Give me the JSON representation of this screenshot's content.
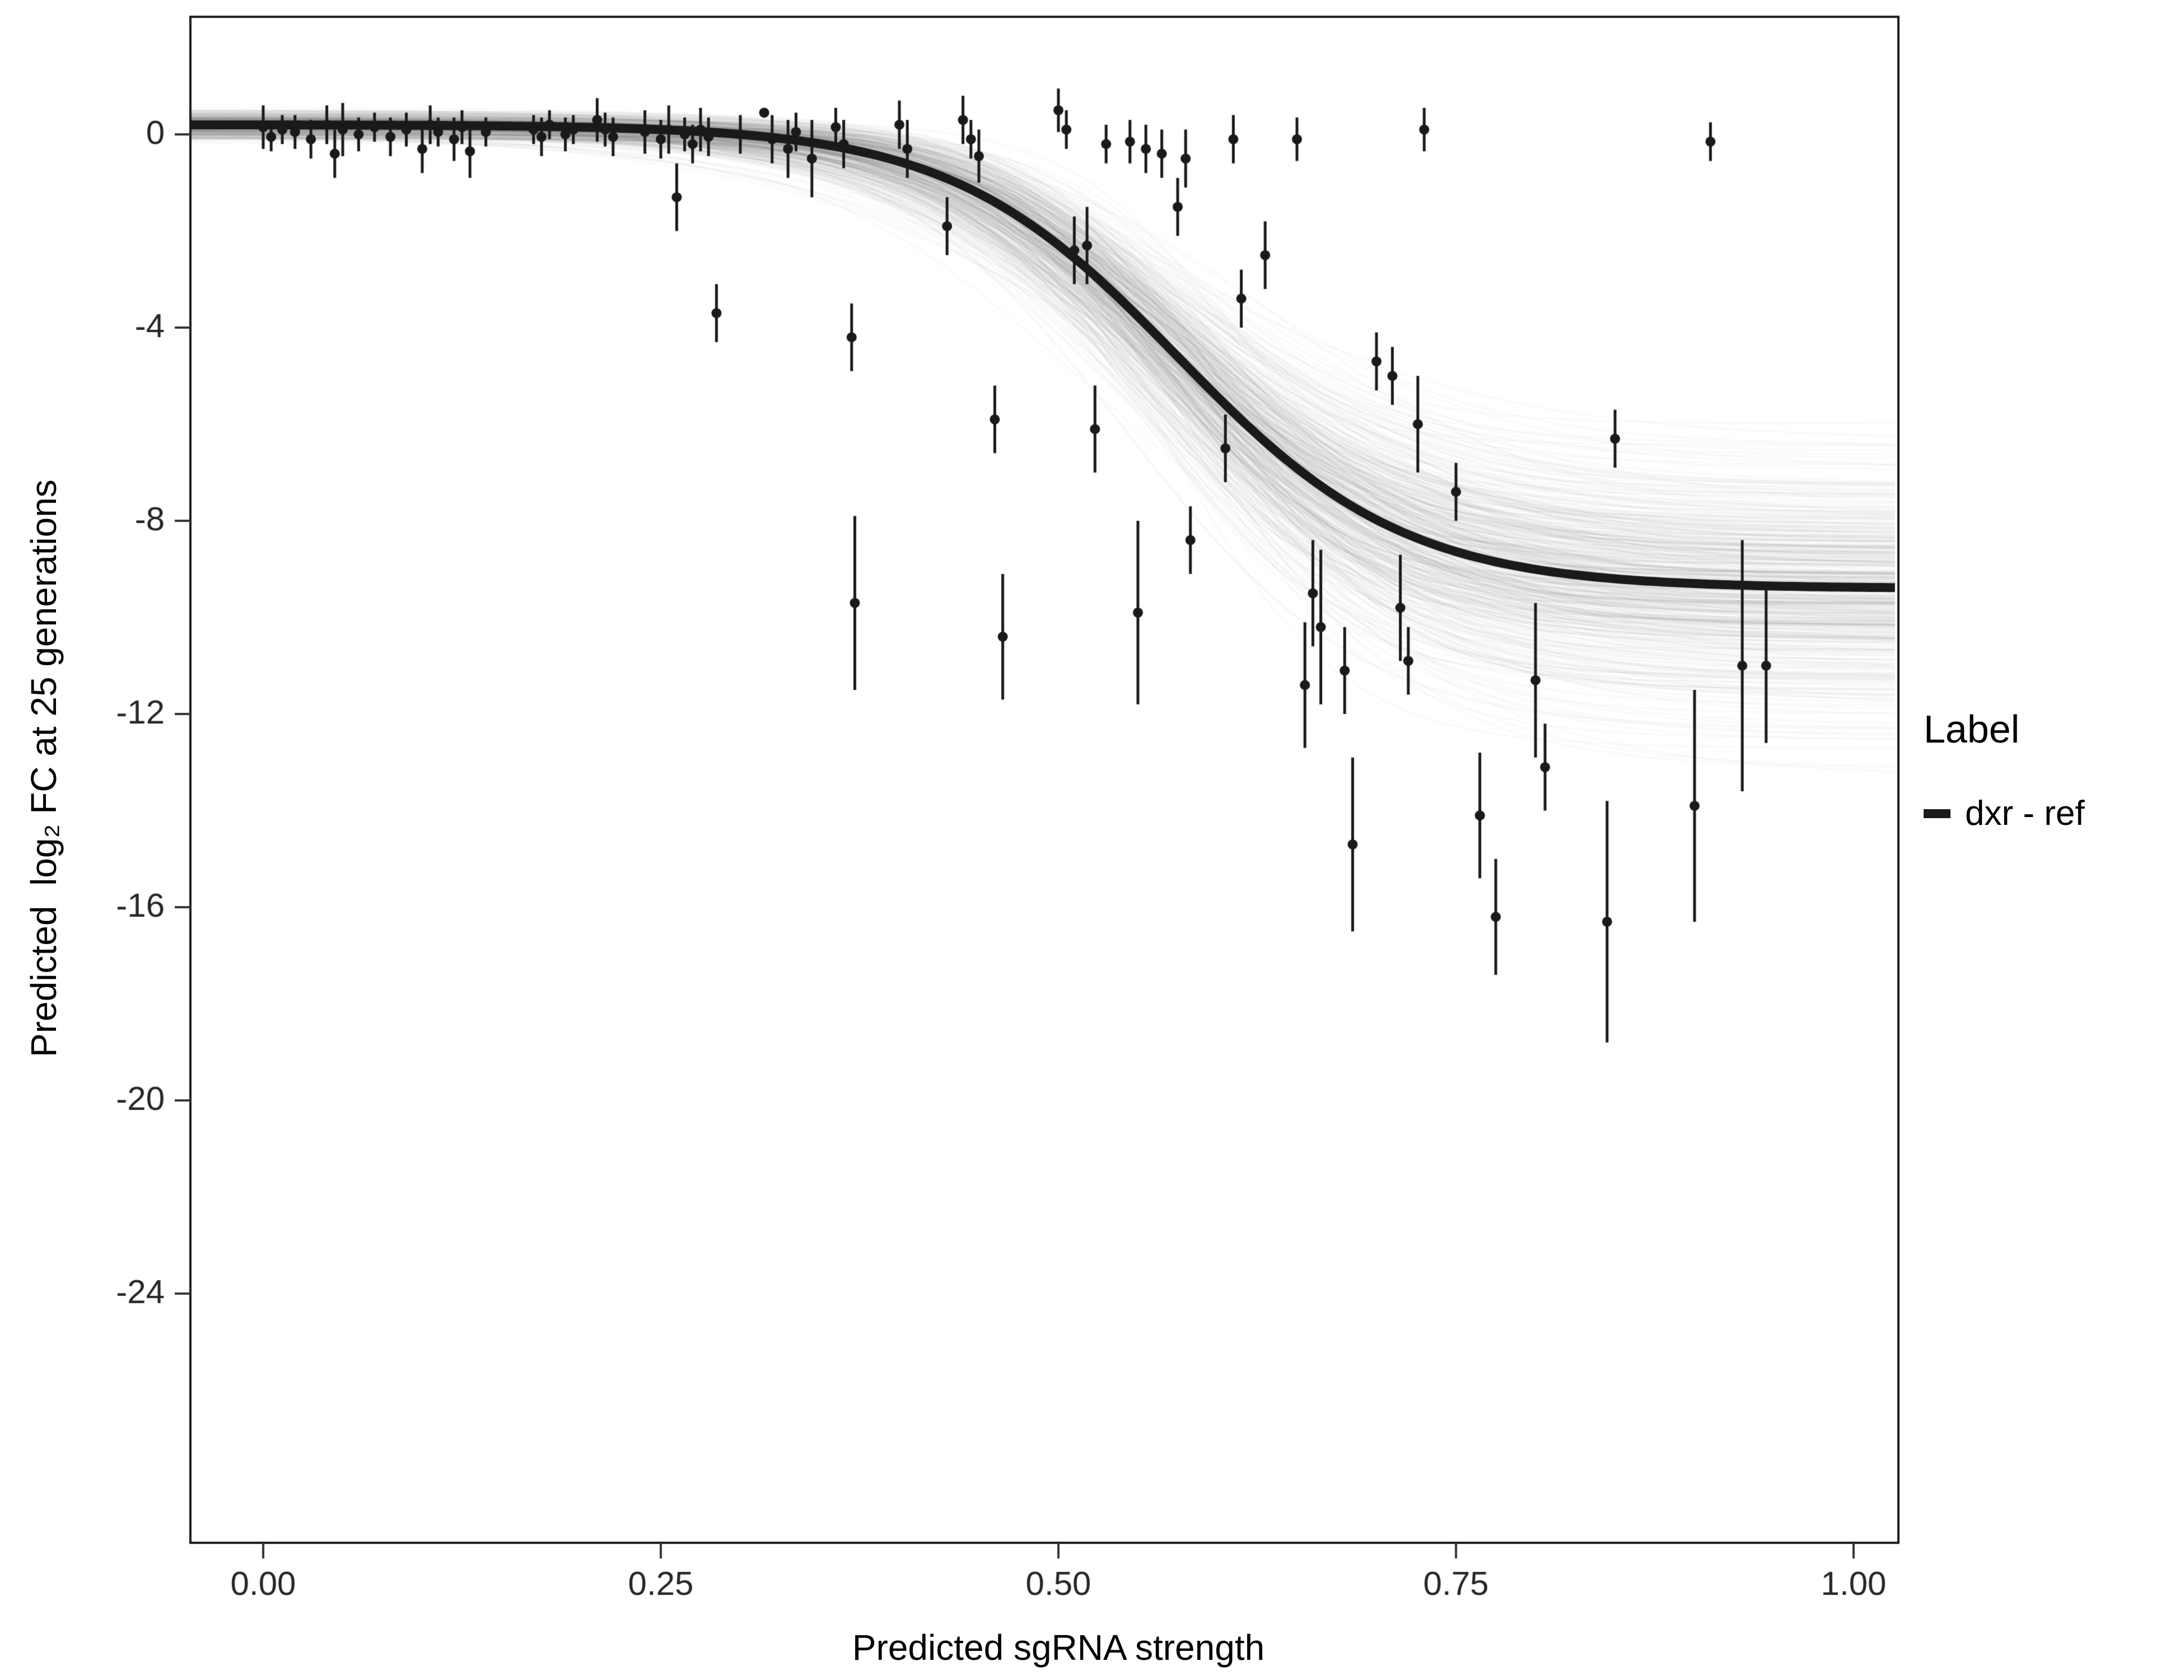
{
  "figure": {
    "background": "#ffffff"
  },
  "chart_data": {
    "type": "scatter",
    "title": "",
    "xlabel": "Predicted sgRNA strength",
    "ylabel": "Predicted  log₂ FC at 25 generations",
    "grid": false,
    "legend_position": "right",
    "axes": {
      "x": {
        "ticks": [
          0,
          0.25,
          0.5,
          0.75,
          1.0
        ],
        "tick_labels": [
          "0.00",
          "0.25",
          "0.50",
          "0.75",
          "1.00"
        ],
        "range": [
          -0.046,
          1.028
        ]
      },
      "y": {
        "ticks": [
          0,
          -4,
          -8,
          -12,
          -16,
          -20,
          -24
        ],
        "tick_labels": [
          "0",
          "-4",
          "-8",
          "-12",
          "-16",
          "-20",
          "-24"
        ],
        "range": [
          2.4,
          -29.2
        ]
      }
    },
    "legend": {
      "title": "Label",
      "items": [
        {
          "label": "dxr - ref",
          "color": "#1a1a1a"
        }
      ]
    },
    "fit": {
      "model": "sigmoid",
      "top": 0.2,
      "bottom": -9.4,
      "x0": 0.575,
      "k": 14,
      "color": "#1a1a1a",
      "width": 16
    },
    "band": {
      "curves": 500,
      "seed": 12,
      "top_sd": 0.12,
      "bottom_sd": 1.25,
      "x0_sd": 0.018,
      "k_sd": 2.2,
      "color": "rgba(125,125,125,0.04)",
      "line_width": 3
    },
    "point_style": {
      "color": "#1a1a1a",
      "radius": 9,
      "errorbar_width": 5
    },
    "points": [
      [
        0.0,
        0.15,
        0.45
      ],
      [
        0.005,
        -0.05,
        0.3
      ],
      [
        0.012,
        0.1,
        0.3
      ],
      [
        0.02,
        0.05,
        0.35
      ],
      [
        0.03,
        -0.1,
        0.4
      ],
      [
        0.04,
        0.2,
        0.4
      ],
      [
        0.045,
        -0.4,
        0.5
      ],
      [
        0.05,
        0.1,
        0.55
      ],
      [
        0.06,
        0.0,
        0.35
      ],
      [
        0.07,
        0.15,
        0.3
      ],
      [
        0.08,
        -0.05,
        0.4
      ],
      [
        0.09,
        0.1,
        0.35
      ],
      [
        0.1,
        -0.3,
        0.5
      ],
      [
        0.105,
        0.2,
        0.4
      ],
      [
        0.11,
        0.05,
        0.3
      ],
      [
        0.12,
        -0.1,
        0.45
      ],
      [
        0.125,
        0.15,
        0.35
      ],
      [
        0.13,
        -0.35,
        0.55
      ],
      [
        0.14,
        0.05,
        0.3
      ],
      [
        0.17,
        0.1,
        0.3
      ],
      [
        0.175,
        -0.05,
        0.4
      ],
      [
        0.18,
        0.2,
        0.3
      ],
      [
        0.19,
        0.0,
        0.35
      ],
      [
        0.195,
        0.1,
        0.3
      ],
      [
        0.21,
        0.3,
        0.45
      ],
      [
        0.215,
        0.1,
        0.35
      ],
      [
        0.22,
        -0.05,
        0.4
      ],
      [
        0.24,
        0.05,
        0.45
      ],
      [
        0.25,
        -0.1,
        0.4
      ],
      [
        0.255,
        0.1,
        0.5
      ],
      [
        0.265,
        0.0,
        0.35
      ],
      [
        0.27,
        -0.2,
        0.4
      ],
      [
        0.275,
        0.1,
        0.45
      ],
      [
        0.28,
        -0.05,
        0.4
      ],
      [
        0.3,
        0.0,
        0.4
      ],
      [
        0.315,
        0.45,
        0.0
      ],
      [
        0.32,
        -0.1,
        0.5
      ],
      [
        0.33,
        -0.3,
        0.6
      ],
      [
        0.335,
        0.05,
        0.4
      ],
      [
        0.345,
        -0.5,
        0.8
      ],
      [
        0.36,
        0.15,
        0.4
      ],
      [
        0.365,
        -0.2,
        0.5
      ],
      [
        0.4,
        0.2,
        0.5
      ],
      [
        0.405,
        -0.3,
        0.6
      ],
      [
        0.44,
        0.3,
        0.5
      ],
      [
        0.445,
        -0.1,
        0.4
      ],
      [
        0.45,
        -0.45,
        0.55
      ],
      [
        0.5,
        0.5,
        0.45
      ],
      [
        0.505,
        0.1,
        0.4
      ],
      [
        0.53,
        -0.2,
        0.4
      ],
      [
        0.545,
        -0.15,
        0.45
      ],
      [
        0.555,
        -0.3,
        0.5
      ],
      [
        0.565,
        -0.4,
        0.5
      ],
      [
        0.58,
        -0.5,
        0.6
      ],
      [
        0.61,
        -0.1,
        0.5
      ],
      [
        0.65,
        -0.1,
        0.45
      ],
      [
        0.73,
        0.1,
        0.45
      ],
      [
        0.91,
        -0.15,
        0.4
      ],
      [
        0.26,
        -1.3,
        0.7
      ],
      [
        0.285,
        -3.7,
        0.6
      ],
      [
        0.37,
        -4.2,
        0.7
      ],
      [
        0.372,
        -9.7,
        1.8
      ],
      [
        0.43,
        -1.9,
        0.6
      ],
      [
        0.46,
        -5.9,
        0.7
      ],
      [
        0.465,
        -10.4,
        1.3
      ],
      [
        0.51,
        -2.4,
        0.7
      ],
      [
        0.518,
        -2.3,
        0.8
      ],
      [
        0.523,
        -6.1,
        0.9
      ],
      [
        0.55,
        -9.9,
        1.9
      ],
      [
        0.575,
        -1.5,
        0.6
      ],
      [
        0.583,
        -8.4,
        0.7
      ],
      [
        0.605,
        -6.5,
        0.7
      ],
      [
        0.615,
        -3.4,
        0.6
      ],
      [
        0.63,
        -2.5,
        0.7
      ],
      [
        0.655,
        -11.4,
        1.3
      ],
      [
        0.66,
        -9.5,
        1.1
      ],
      [
        0.665,
        -10.2,
        1.6
      ],
      [
        0.68,
        -11.1,
        0.9
      ],
      [
        0.685,
        -14.7,
        1.8
      ],
      [
        0.7,
        -4.7,
        0.6
      ],
      [
        0.71,
        -5.0,
        0.6
      ],
      [
        0.715,
        -9.8,
        1.1
      ],
      [
        0.72,
        -10.9,
        0.7
      ],
      [
        0.726,
        -6.0,
        1.0
      ],
      [
        0.75,
        -7.4,
        0.6
      ],
      [
        0.765,
        -14.1,
        1.3
      ],
      [
        0.775,
        -16.2,
        1.2
      ],
      [
        0.8,
        -11.3,
        1.6
      ],
      [
        0.806,
        -13.1,
        0.9
      ],
      [
        0.845,
        -16.3,
        2.5
      ],
      [
        0.85,
        -6.3,
        0.6
      ],
      [
        0.9,
        -13.9,
        2.4
      ],
      [
        0.93,
        -11.0,
        2.6
      ],
      [
        0.945,
        -11.0,
        1.6
      ]
    ]
  }
}
